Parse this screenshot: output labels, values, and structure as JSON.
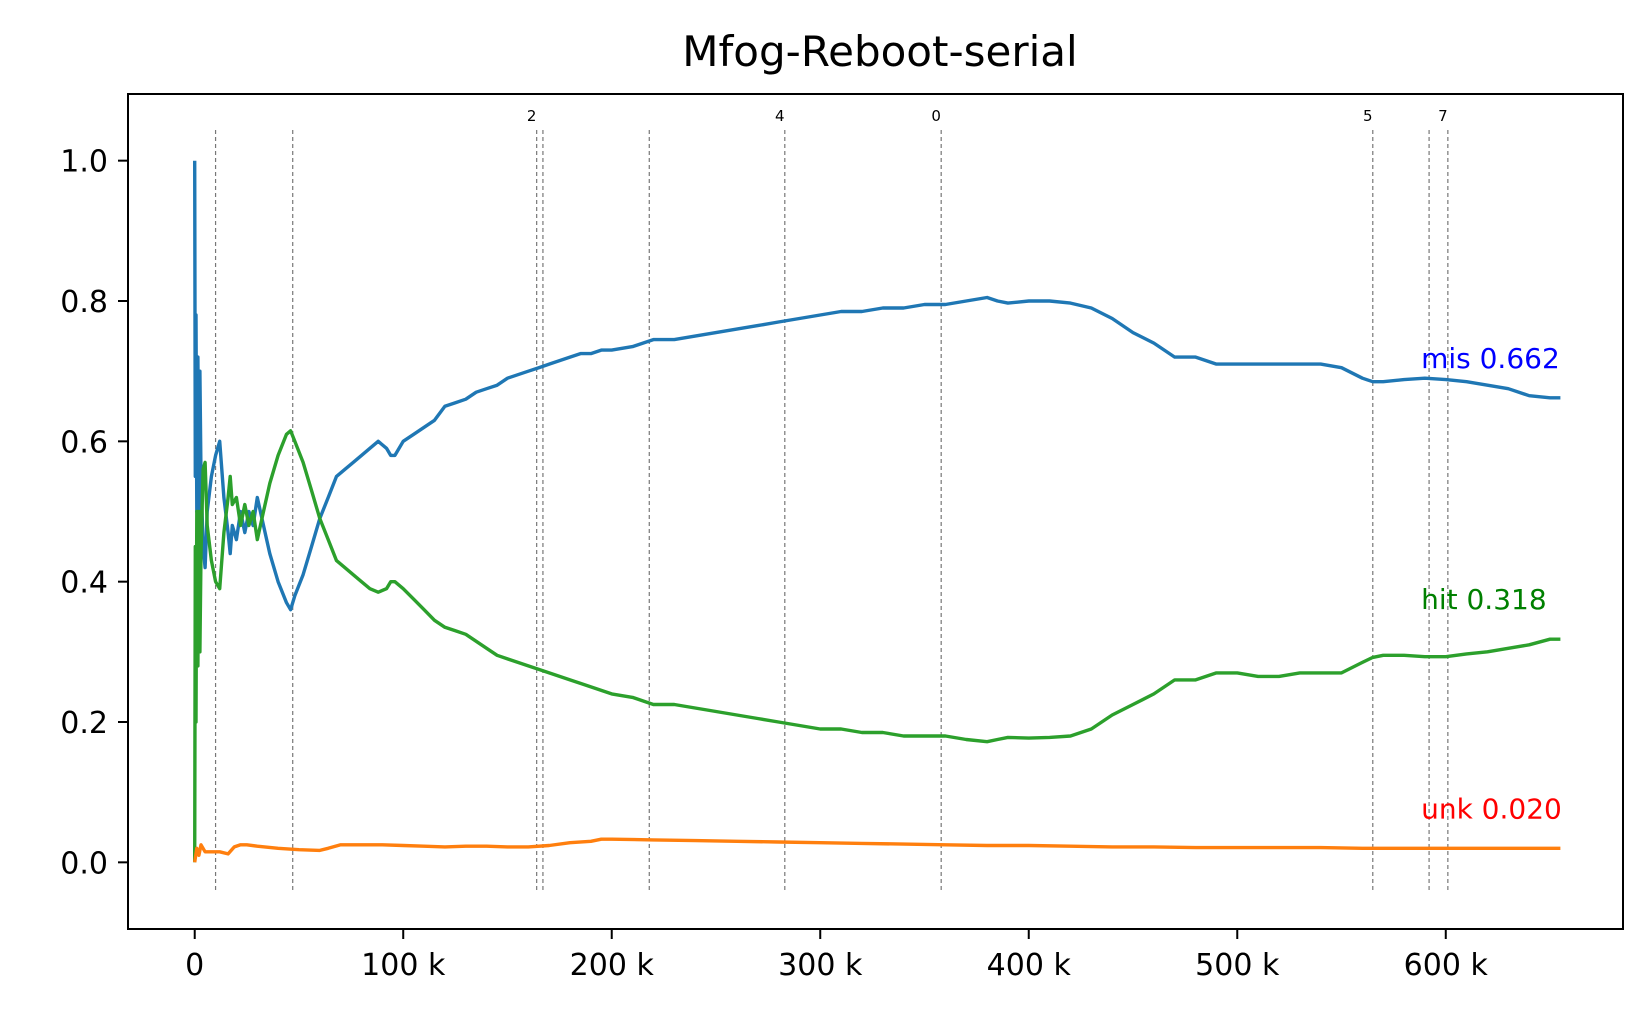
{
  "chart_data": {
    "type": "line",
    "title": "Mfog-Reboot-serial",
    "xlabel": "",
    "ylabel": "",
    "xlim": [
      -32000,
      685000
    ],
    "ylim": [
      -0.095,
      1.095
    ],
    "x_ticks": [
      0,
      100000,
      200000,
      300000,
      400000,
      500000,
      600000
    ],
    "x_tick_labels": [
      "0",
      "100 k",
      "200 k",
      "300 k",
      "400 k",
      "500 k",
      "600 k"
    ],
    "y_ticks": [
      0.0,
      0.2,
      0.4,
      0.6,
      0.8,
      1.0
    ],
    "y_tick_labels": [
      "0.0",
      "0.2",
      "0.4",
      "0.6",
      "0.8",
      "1.0"
    ],
    "grid": false,
    "legend": "none",
    "vlines": [
      {
        "x": 10000,
        "label": ""
      },
      {
        "x": 47000,
        "label": ""
      },
      {
        "x": 164000,
        "label": "2"
      },
      {
        "x": 167000,
        "label": ""
      },
      {
        "x": 218000,
        "label": ""
      },
      {
        "x": 283000,
        "label": "4"
      },
      {
        "x": 358000,
        "label": "0"
      },
      {
        "x": 565000,
        "label": "5"
      },
      {
        "x": 592000,
        "label": ""
      },
      {
        "x": 601000,
        "label": "7"
      }
    ],
    "series": [
      {
        "name": "mis",
        "color": "#1f77b4",
        "end_label": "mis 0.662",
        "end_label_color": "#0000ff",
        "x": [
          0,
          300,
          600,
          1000,
          1500,
          2000,
          2500,
          3000,
          4000,
          5000,
          6000,
          8000,
          10000,
          12000,
          14000,
          16000,
          17000,
          18000,
          20000,
          22000,
          24000,
          26000,
          28000,
          30000,
          33000,
          36000,
          40000,
          44000,
          46000,
          48000,
          52000,
          56000,
          60000,
          64000,
          68000,
          72000,
          76000,
          80000,
          84000,
          88000,
          92000,
          94000,
          96000,
          100000,
          105000,
          110000,
          115000,
          120000,
          125000,
          130000,
          135000,
          140000,
          145000,
          150000,
          155000,
          160000,
          165000,
          170000,
          175000,
          180000,
          185000,
          190000,
          195000,
          200000,
          210000,
          220000,
          225000,
          230000,
          240000,
          250000,
          260000,
          270000,
          280000,
          290000,
          300000,
          310000,
          320000,
          330000,
          340000,
          350000,
          360000,
          370000,
          380000,
          385000,
          390000,
          400000,
          410000,
          420000,
          430000,
          440000,
          450000,
          460000,
          470000,
          480000,
          490000,
          500000,
          510000,
          520000,
          530000,
          540000,
          550000,
          560000,
          565000,
          570000,
          580000,
          590000,
          600000,
          610000,
          620000,
          630000,
          640000,
          650000,
          655000
        ],
        "y": [
          1.0,
          0.55,
          0.78,
          0.5,
          0.72,
          0.5,
          0.7,
          0.55,
          0.45,
          0.42,
          0.5,
          0.55,
          0.58,
          0.6,
          0.52,
          0.47,
          0.44,
          0.48,
          0.46,
          0.5,
          0.47,
          0.5,
          0.48,
          0.52,
          0.48,
          0.44,
          0.4,
          0.37,
          0.36,
          0.38,
          0.41,
          0.45,
          0.49,
          0.52,
          0.55,
          0.56,
          0.57,
          0.58,
          0.59,
          0.6,
          0.59,
          0.58,
          0.58,
          0.6,
          0.61,
          0.62,
          0.63,
          0.65,
          0.655,
          0.66,
          0.67,
          0.675,
          0.68,
          0.69,
          0.695,
          0.7,
          0.705,
          0.71,
          0.715,
          0.72,
          0.725,
          0.725,
          0.73,
          0.73,
          0.735,
          0.745,
          0.745,
          0.745,
          0.75,
          0.755,
          0.76,
          0.765,
          0.77,
          0.775,
          0.78,
          0.785,
          0.785,
          0.79,
          0.79,
          0.795,
          0.795,
          0.8,
          0.805,
          0.8,
          0.797,
          0.8,
          0.8,
          0.797,
          0.79,
          0.775,
          0.755,
          0.74,
          0.72,
          0.72,
          0.71,
          0.71,
          0.71,
          0.71,
          0.71,
          0.71,
          0.705,
          0.69,
          0.685,
          0.685,
          0.688,
          0.69,
          0.688,
          0.685,
          0.68,
          0.675,
          0.665,
          0.662,
          0.662
        ]
      },
      {
        "name": "hit",
        "color": "#2ca02c",
        "end_label": "hit 0.318",
        "end_label_color": "#008000",
        "x": [
          0,
          300,
          600,
          1000,
          1500,
          2000,
          2500,
          3000,
          4000,
          5000,
          6000,
          8000,
          10000,
          12000,
          14000,
          16000,
          17000,
          18000,
          20000,
          22000,
          24000,
          26000,
          28000,
          30000,
          33000,
          36000,
          40000,
          44000,
          46000,
          48000,
          52000,
          56000,
          60000,
          64000,
          68000,
          72000,
          76000,
          80000,
          84000,
          88000,
          92000,
          94000,
          96000,
          100000,
          105000,
          110000,
          115000,
          120000,
          125000,
          130000,
          135000,
          140000,
          145000,
          150000,
          155000,
          160000,
          165000,
          170000,
          175000,
          180000,
          185000,
          190000,
          195000,
          200000,
          210000,
          220000,
          225000,
          230000,
          240000,
          250000,
          260000,
          270000,
          280000,
          290000,
          300000,
          310000,
          320000,
          330000,
          340000,
          350000,
          360000,
          370000,
          380000,
          385000,
          390000,
          400000,
          410000,
          420000,
          430000,
          440000,
          450000,
          460000,
          470000,
          480000,
          490000,
          500000,
          510000,
          520000,
          530000,
          540000,
          550000,
          560000,
          565000,
          570000,
          580000,
          590000,
          600000,
          610000,
          620000,
          630000,
          640000,
          650000,
          655000
        ],
        "y": [
          0.0,
          0.45,
          0.2,
          0.5,
          0.28,
          0.5,
          0.3,
          0.44,
          0.56,
          0.57,
          0.48,
          0.43,
          0.4,
          0.39,
          0.47,
          0.52,
          0.55,
          0.51,
          0.52,
          0.48,
          0.51,
          0.48,
          0.5,
          0.46,
          0.5,
          0.54,
          0.58,
          0.61,
          0.615,
          0.6,
          0.57,
          0.53,
          0.49,
          0.46,
          0.43,
          0.42,
          0.41,
          0.4,
          0.39,
          0.385,
          0.39,
          0.4,
          0.4,
          0.39,
          0.375,
          0.36,
          0.345,
          0.335,
          0.33,
          0.325,
          0.315,
          0.305,
          0.295,
          0.29,
          0.285,
          0.28,
          0.275,
          0.27,
          0.265,
          0.26,
          0.255,
          0.25,
          0.245,
          0.24,
          0.235,
          0.225,
          0.225,
          0.225,
          0.22,
          0.215,
          0.21,
          0.205,
          0.2,
          0.195,
          0.19,
          0.19,
          0.185,
          0.185,
          0.18,
          0.18,
          0.18,
          0.175,
          0.172,
          0.175,
          0.178,
          0.177,
          0.178,
          0.18,
          0.19,
          0.21,
          0.225,
          0.24,
          0.26,
          0.26,
          0.27,
          0.27,
          0.265,
          0.265,
          0.27,
          0.27,
          0.27,
          0.285,
          0.292,
          0.295,
          0.295,
          0.293,
          0.293,
          0.297,
          0.3,
          0.305,
          0.31,
          0.318,
          0.318
        ]
      },
      {
        "name": "unk",
        "color": "#ff7f0e",
        "end_label": "unk 0.020",
        "end_label_color": "#ff0000",
        "x": [
          0,
          1000,
          2000,
          3000,
          5000,
          8000,
          12000,
          16000,
          19000,
          22000,
          25000,
          30000,
          40000,
          50000,
          60000,
          64000,
          70000,
          80000,
          90000,
          100000,
          110000,
          120000,
          130000,
          140000,
          150000,
          160000,
          170000,
          180000,
          190000,
          195000,
          200000,
          220000,
          240000,
          260000,
          280000,
          300000,
          320000,
          340000,
          360000,
          380000,
          400000,
          420000,
          440000,
          460000,
          480000,
          500000,
          520000,
          540000,
          560000,
          580000,
          600000,
          620000,
          640000,
          655000
        ],
        "y": [
          0.0,
          0.02,
          0.01,
          0.025,
          0.015,
          0.015,
          0.015,
          0.012,
          0.022,
          0.025,
          0.025,
          0.023,
          0.02,
          0.018,
          0.017,
          0.02,
          0.025,
          0.025,
          0.025,
          0.024,
          0.023,
          0.022,
          0.023,
          0.023,
          0.022,
          0.022,
          0.024,
          0.028,
          0.03,
          0.033,
          0.033,
          0.032,
          0.031,
          0.03,
          0.029,
          0.028,
          0.027,
          0.026,
          0.025,
          0.024,
          0.024,
          0.023,
          0.022,
          0.022,
          0.021,
          0.021,
          0.021,
          0.021,
          0.02,
          0.02,
          0.02,
          0.02,
          0.02,
          0.02
        ]
      }
    ]
  }
}
